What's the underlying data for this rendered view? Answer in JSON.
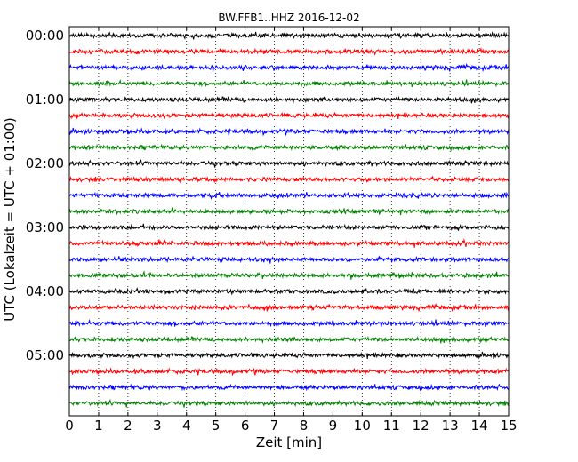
{
  "chart_data": {
    "type": "line",
    "title": "BW.FFB1..HHZ 2016-12-02",
    "xlabel": "Zeit  [min]",
    "ylabel": "UTC (Lokalzeit = UTC + 01:00)",
    "xlim": [
      0,
      15
    ],
    "x_ticks": [
      "0",
      "1",
      "2",
      "3",
      "4",
      "5",
      "6",
      "7",
      "8",
      "9",
      "10",
      "11",
      "12",
      "13",
      "14",
      "15"
    ],
    "y_ticks": [
      "00:00",
      "01:00",
      "02:00",
      "03:00",
      "04:00",
      "05:00"
    ],
    "grid": "vertical dotted",
    "trace_colors": [
      "#000000",
      "#ff0000",
      "#0000ff",
      "#008000"
    ],
    "traces": [
      {
        "start": "00:00"
      },
      {
        "start": "00:15"
      },
      {
        "start": "00:30"
      },
      {
        "start": "00:45"
      },
      {
        "start": "01:00"
      },
      {
        "start": "01:15"
      },
      {
        "start": "01:30"
      },
      {
        "start": "01:45"
      },
      {
        "start": "02:00"
      },
      {
        "start": "02:15"
      },
      {
        "start": "02:30"
      },
      {
        "start": "02:45"
      },
      {
        "start": "03:00"
      },
      {
        "start": "03:15"
      },
      {
        "start": "03:30"
      },
      {
        "start": "03:45"
      },
      {
        "start": "04:00"
      },
      {
        "start": "04:15"
      },
      {
        "start": "04:30"
      },
      {
        "start": "04:45"
      },
      {
        "start": "05:00"
      },
      {
        "start": "05:15"
      },
      {
        "start": "05:30"
      },
      {
        "start": "05:45"
      }
    ]
  }
}
